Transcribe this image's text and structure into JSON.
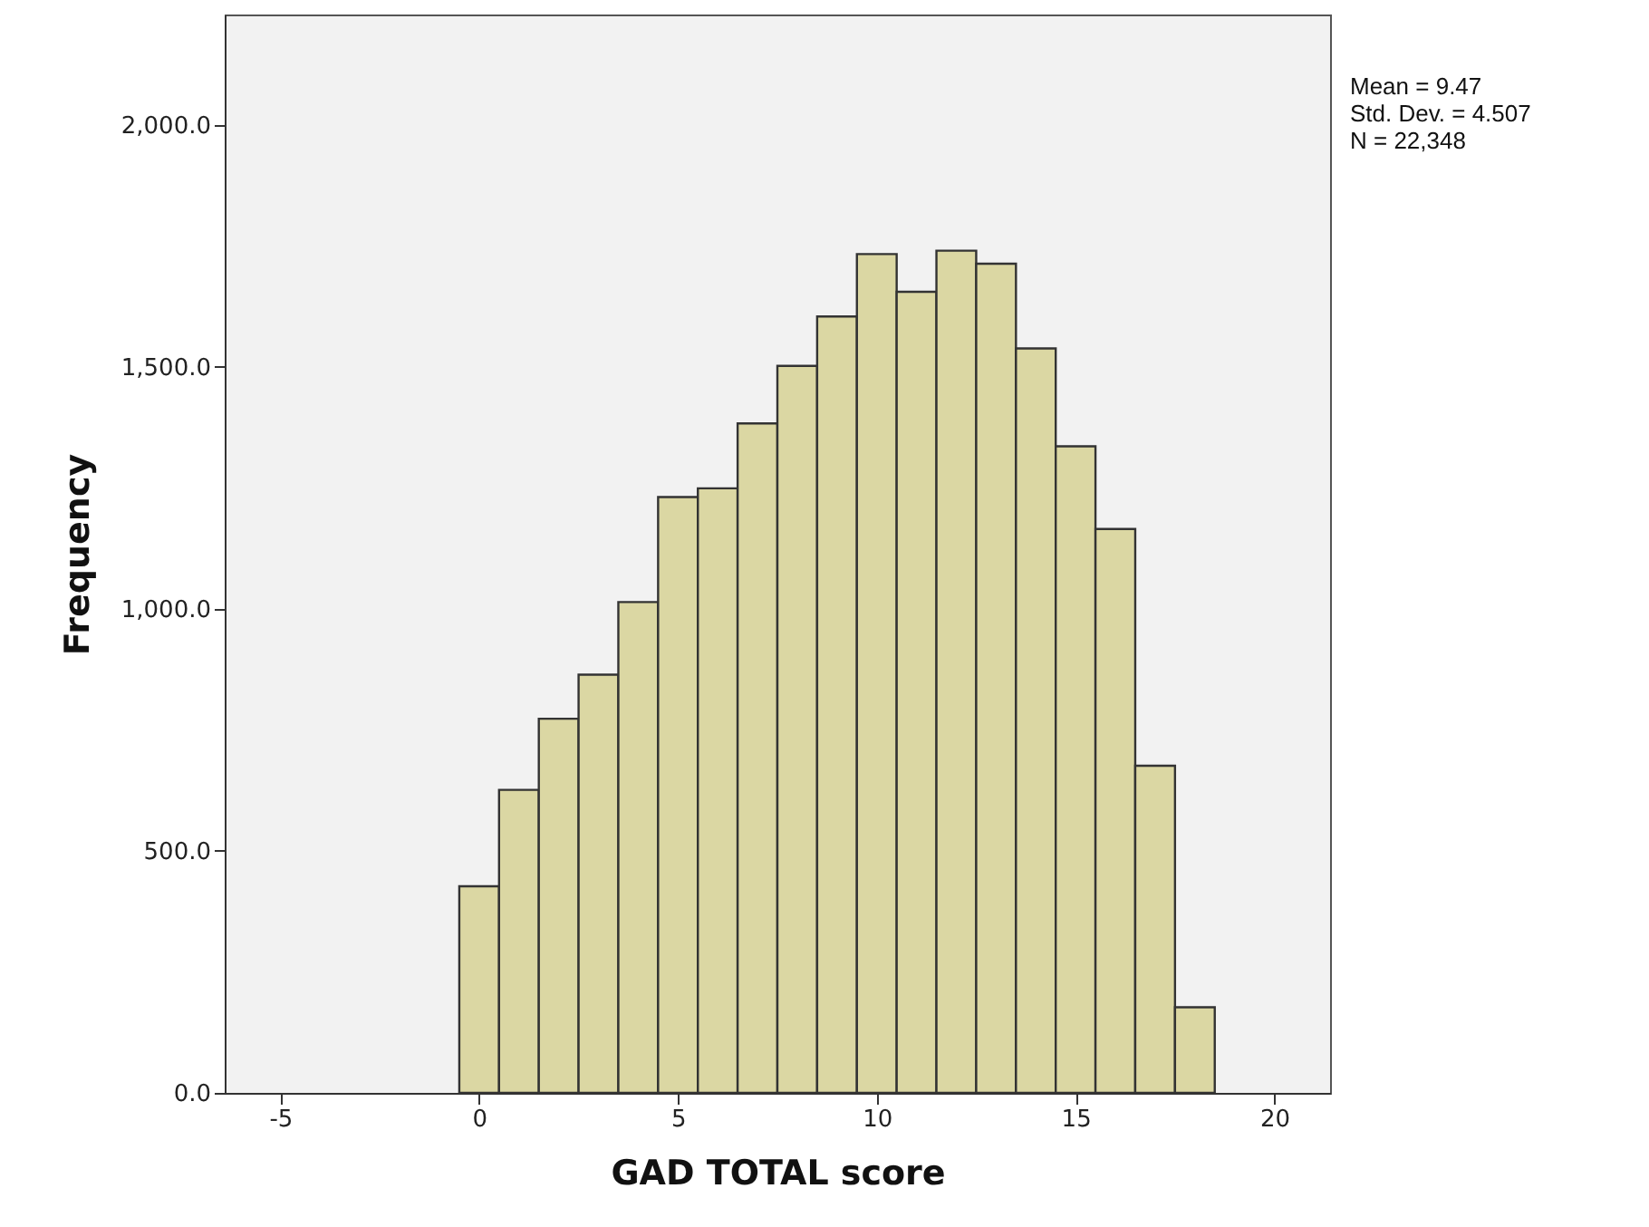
{
  "chart_data": {
    "type": "histogram",
    "xlabel": "GAD TOTAL score",
    "ylabel": "Frequency",
    "bins": [
      -0.5,
      0.5,
      1.5,
      2.5,
      3.5,
      4.5,
      5.5,
      6.5,
      7.5,
      8.5,
      9.5,
      10.5,
      11.5,
      12.5,
      13.5,
      14.5,
      15.5,
      16.5,
      17.5,
      18.5
    ],
    "values": [
      427,
      626,
      773,
      864,
      1014,
      1231,
      1249,
      1383,
      1502,
      1604,
      1733,
      1655,
      1740,
      1713,
      1538,
      1336,
      1165,
      676,
      177
    ],
    "color": "#dbd7a3",
    "xlim": [
      -6.4,
      21.4
    ],
    "xticks": [
      -5,
      0,
      5,
      10,
      15,
      20
    ],
    "ylim": [
      0,
      2228
    ],
    "yticks": [
      {
        "value": 0,
        "label": "0.0"
      },
      {
        "value": 500,
        "label": "500.0"
      },
      {
        "value": 1000,
        "label": "1,000.0"
      },
      {
        "value": 1500,
        "label": "1,500.0"
      },
      {
        "value": 2000,
        "label": "2,000.0"
      }
    ],
    "grid": false,
    "annotations": [
      "Mean = 9.47",
      "Std. Dev. = 4.507",
      "N = 22,348"
    ]
  }
}
